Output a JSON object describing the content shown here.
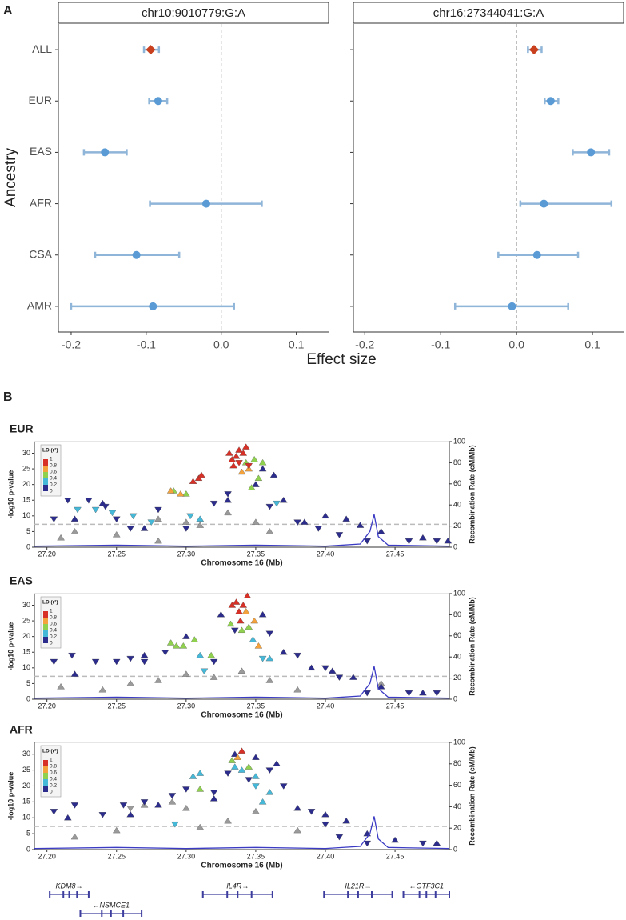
{
  "figure": {
    "panel_labels": [
      "A",
      "B"
    ],
    "a_ylabel": "Ancestry",
    "a_xlabel": "Effect size"
  },
  "chart_data": [
    {
      "type": "forest",
      "title": "chr10:9010779:G:A",
      "categories": [
        "ALL",
        "EUR",
        "EAS",
        "AFR",
        "CSA",
        "AMR"
      ],
      "values": [
        -0.094,
        -0.084,
        -0.155,
        -0.02,
        -0.113,
        -0.091
      ],
      "lower": [
        -0.103,
        -0.096,
        -0.183,
        -0.095,
        -0.168,
        -0.2
      ],
      "upper": [
        -0.083,
        -0.072,
        -0.126,
        0.054,
        -0.056,
        0.017
      ],
      "markers": [
        "diamond",
        "circle",
        "circle",
        "circle",
        "circle",
        "circle"
      ],
      "colors": [
        "#c8401d",
        "#5b9bd5",
        "#5b9bd5",
        "#5b9bd5",
        "#5b9bd5",
        "#5b9bd5"
      ],
      "errorbar_color": "#8fb5d8",
      "xlim": [
        -0.217,
        0.143
      ],
      "xticks": [
        -0.2,
        -0.1,
        {
          "value": 0,
          "label": "0.0"
        },
        0.1
      ],
      "refline": 0
    },
    {
      "type": "forest",
      "title": "chr16:27344041:G:A",
      "values": [
        0.023,
        0.045,
        0.098,
        0.036,
        0.027,
        -0.006
      ],
      "lower": [
        0.015,
        0.037,
        0.074,
        0.005,
        -0.024,
        -0.081
      ],
      "upper": [
        0.033,
        0.055,
        0.122,
        0.125,
        0.081,
        0.068
      ],
      "markers": [
        "diamond",
        "circle",
        "circle",
        "circle",
        "circle",
        "circle"
      ],
      "colors": [
        "#c8401d",
        "#5b9bd5",
        "#5b9bd5",
        "#5b9bd5",
        "#5b9bd5",
        "#5b9bd5"
      ],
      "errorbar_color": "#8fb5d8",
      "xlim": [
        -0.215,
        0.141
      ],
      "xticks": [
        -0.2,
        -0.1,
        {
          "value": 0,
          "label": "0.0"
        },
        0.1
      ],
      "refline": 0
    },
    {
      "type": "scatter",
      "title": "EUR",
      "xlabel": "Chromosome 16 (Mb)",
      "ylabel": "-log10 p-value",
      "y2label": "Recombination Rate (cM/Mb)",
      "xlim": [
        27.191,
        27.489
      ],
      "xticks": [
        {
          "value": 27.2,
          "label": "27.20"
        },
        27.25,
        {
          "value": 27.3,
          "label": "27.30"
        },
        27.35,
        {
          "value": 27.4,
          "label": "27.40"
        },
        27.45
      ],
      "ylim": [
        0,
        33.7
      ],
      "yticks": [
        0,
        5,
        10,
        15,
        20,
        25,
        30
      ],
      "y2lim": [
        0,
        100
      ],
      "y2ticks": [
        0,
        20,
        40,
        60,
        80,
        100
      ],
      "threshold": 7.3,
      "legend": {
        "title": "LD (r²)",
        "ticks": [
          1,
          0.8,
          0.6,
          0.4,
          0.2,
          0
        ],
        "colors": [
          "#d73027",
          "#f4a23c",
          "#8fd14f",
          "#46b8d8",
          "#2c2c8c"
        ]
      },
      "series": [
        {
          "color": "#9a9a9a",
          "marker": "triangle-up",
          "x": [
            27.21,
            27.25,
            27.28,
            27.3,
            27.31,
            27.33,
            27.35,
            27.36,
            27.28,
            27.22
          ],
          "y": [
            3,
            4,
            2,
            8,
            7,
            11,
            8,
            5,
            9,
            5
          ]
        },
        {
          "color": "#2c2c8c",
          "marker": "triangle-down",
          "x": [
            27.205,
            27.215,
            27.23,
            27.242,
            27.25,
            27.26,
            27.28,
            27.3,
            27.32,
            27.33,
            27.36,
            27.38,
            27.395,
            27.41,
            27.43,
            27.46,
            27.48
          ],
          "y": [
            9,
            15,
            15,
            13,
            9,
            6,
            12,
            6,
            14,
            17,
            13,
            8,
            6,
            4,
            2,
            2,
            2
          ]
        },
        {
          "color": "#2c2c8c",
          "marker": "triangle-up",
          "x": [
            27.22,
            27.24,
            27.27,
            27.33,
            27.35,
            27.363,
            27.355,
            27.37,
            27.385,
            27.4,
            27.415,
            27.425,
            27.44,
            27.47,
            27.488
          ],
          "y": [
            9,
            14,
            6,
            15,
            20,
            23,
            25,
            15,
            8,
            10,
            9,
            7,
            5,
            3,
            2
          ]
        },
        {
          "color": "#46b8d8",
          "marker": "triangle-down",
          "x": [
            27.222,
            27.235,
            27.247,
            27.262,
            27.275,
            27.303,
            27.365
          ],
          "y": [
            12,
            12,
            11,
            10,
            8,
            10,
            14
          ]
        },
        {
          "color": "#46b8d8",
          "marker": "triangle-up",
          "x": [
            27.31
          ],
          "y": [
            9
          ]
        },
        {
          "color": "#8fd14f",
          "marker": "triangle-up",
          "x": [
            27.291,
            27.3,
            27.343,
            27.349,
            27.352,
            27.355,
            27.347
          ],
          "y": [
            18,
            17,
            27,
            28,
            22,
            27,
            19
          ]
        },
        {
          "color": "#f4a23c",
          "marker": "triangle-up",
          "x": [
            27.289,
            27.296,
            27.34,
            27.345
          ],
          "y": [
            18,
            17,
            24,
            25
          ]
        },
        {
          "color": "#d73027",
          "marker": "triangle-up",
          "x": [
            27.331,
            27.333,
            27.336,
            27.338,
            27.341,
            27.343,
            27.334,
            27.305,
            27.309,
            27.311
          ],
          "y": [
            30,
            28,
            29,
            31,
            30,
            32,
            26,
            21,
            22,
            23
          ]
        },
        {
          "color": "#d73027",
          "marker": "triangle-down",
          "x": [
            27.338,
            27.345
          ],
          "y": [
            27,
            26
          ]
        }
      ],
      "recomb": {
        "axis": "y2",
        "color": "#3b3bc4",
        "x": [
          27.191,
          27.25,
          27.3,
          27.35,
          27.4,
          27.425,
          27.432,
          27.435,
          27.438,
          27.445,
          27.489
        ],
        "y": [
          1,
          2,
          1,
          2,
          1,
          3,
          15,
          31,
          10,
          2,
          1
        ]
      }
    },
    {
      "type": "scatter",
      "title": "EAS",
      "xlabel": "Chromosome 16 (Mb)",
      "ylabel": "-log10 p-value",
      "y2label": "Recombination Rate (cM/Mb)",
      "xlim": [
        27.191,
        27.489
      ],
      "xticks": [
        {
          "value": 27.2,
          "label": "27.20"
        },
        27.25,
        {
          "value": 27.3,
          "label": "27.30"
        },
        27.35,
        {
          "value": 27.4,
          "label": "27.40"
        },
        27.45
      ],
      "ylim": [
        0,
        33.7
      ],
      "yticks": [
        0,
        5,
        10,
        15,
        20,
        25,
        30
      ],
      "y2lim": [
        0,
        100
      ],
      "y2ticks": [
        0,
        20,
        40,
        60,
        80,
        100
      ],
      "threshold": 7.3,
      "legend": {
        "title": "LD (r²)",
        "ticks": [
          1,
          0.8,
          0.6,
          0.4,
          0.2,
          0
        ],
        "colors": [
          "#d73027",
          "#f4a23c",
          "#8fd14f",
          "#46b8d8",
          "#2c2c8c"
        ]
      },
      "series": [
        {
          "color": "#9a9a9a",
          "marker": "triangle-up",
          "x": [
            27.21,
            27.24,
            27.26,
            27.28,
            27.3,
            27.32,
            27.34,
            27.36,
            27.38,
            27.44
          ],
          "y": [
            4,
            3,
            5,
            6,
            8,
            7,
            9,
            6,
            3,
            5
          ]
        },
        {
          "color": "#2c2c8c",
          "marker": "triangle-down",
          "x": [
            27.205,
            27.218,
            27.235,
            27.25,
            27.26,
            27.27,
            27.285,
            27.32,
            27.335,
            27.36,
            27.38,
            27.4,
            27.41,
            27.43,
            27.46,
            27.48
          ],
          "y": [
            12,
            14,
            12,
            12,
            13,
            12,
            15,
            12,
            22,
            21,
            14,
            10,
            7,
            2,
            2,
            2
          ]
        },
        {
          "color": "#2c2c8c",
          "marker": "triangle-up",
          "x": [
            27.22,
            27.27,
            27.3,
            27.325,
            27.355,
            27.37,
            27.39,
            27.405,
            27.42,
            27.44,
            27.47
          ],
          "y": [
            8,
            14,
            20,
            27,
            27,
            15,
            10,
            9,
            7,
            4,
            2
          ]
        },
        {
          "color": "#46b8d8",
          "marker": "triangle-up",
          "x": [
            27.31,
            27.348,
            27.36
          ],
          "y": [
            14,
            19,
            13
          ]
        },
        {
          "color": "#46b8d8",
          "marker": "triangle-down",
          "x": [
            27.313,
            27.355
          ],
          "y": [
            9,
            13
          ]
        },
        {
          "color": "#8fd14f",
          "marker": "triangle-up",
          "x": [
            27.289,
            27.293,
            27.298,
            27.306,
            27.318,
            27.332,
            27.34,
            27.345
          ],
          "y": [
            18,
            17,
            17,
            19,
            14,
            24,
            22,
            23
          ]
        },
        {
          "color": "#f4a23c",
          "marker": "triangle-up",
          "x": [
            27.343,
            27.349,
            27.352
          ],
          "y": [
            28,
            25,
            17
          ]
        },
        {
          "color": "#d73027",
          "marker": "triangle-up",
          "x": [
            27.333,
            27.336,
            27.338,
            27.341,
            27.344,
            27.339
          ],
          "y": [
            30,
            31,
            28,
            30,
            33,
            25
          ]
        }
      ],
      "recomb": {
        "axis": "y2",
        "color": "#3b3bc4",
        "x": [
          27.191,
          27.25,
          27.3,
          27.35,
          27.4,
          27.425,
          27.432,
          27.435,
          27.438,
          27.445,
          27.489
        ],
        "y": [
          1,
          2,
          1,
          2,
          1,
          3,
          15,
          31,
          10,
          2,
          1
        ]
      }
    },
    {
      "type": "scatter",
      "title": "AFR",
      "xlabel": "Chromosome 16 (Mb)",
      "ylabel": "-log10 p-value",
      "y2label": "Recombination Rate (cM/Mb)",
      "xlim": [
        27.191,
        27.489
      ],
      "xticks": [
        {
          "value": 27.2,
          "label": "27.20"
        },
        27.25,
        {
          "value": 27.3,
          "label": "27.30"
        },
        27.35,
        {
          "value": 27.4,
          "label": "27.40"
        },
        27.45
      ],
      "ylim": [
        0,
        33.7
      ],
      "yticks": [
        0,
        5,
        10,
        15,
        20,
        25,
        30
      ],
      "y2lim": [
        0,
        100
      ],
      "y2ticks": [
        0,
        20,
        40,
        60,
        80,
        100
      ],
      "threshold": 7.3,
      "legend": {
        "title": "LD (r²)",
        "ticks": [
          1,
          0.8,
          0.6,
          0.4,
          0.2,
          0
        ],
        "colors": [
          "#d73027",
          "#f4a23c",
          "#8fd14f",
          "#46b8d8",
          "#2c2c8c"
        ]
      },
      "series": [
        {
          "color": "#9a9a9a",
          "marker": "triangle-up",
          "x": [
            27.22,
            27.25,
            27.27,
            27.3,
            27.29,
            27.31,
            27.33,
            27.35,
            27.38
          ],
          "y": [
            4,
            6,
            14,
            13,
            15,
            7,
            9,
            12,
            6
          ]
        },
        {
          "color": "#9a9a9a",
          "marker": "triangle-down",
          "x": [
            27.26
          ],
          "y": [
            13
          ]
        },
        {
          "color": "#2c2c8c",
          "marker": "triangle-down",
          "x": [
            27.205,
            27.22,
            27.24,
            27.255,
            27.27,
            27.29,
            27.3,
            27.32,
            27.33,
            27.345,
            27.36,
            27.37,
            27.39,
            27.4,
            27.41,
            27.43,
            27.47
          ],
          "y": [
            12,
            14,
            11,
            14,
            15,
            17,
            19,
            18,
            24,
            22,
            25,
            20,
            12,
            8,
            4,
            2,
            2
          ]
        },
        {
          "color": "#2c2c8c",
          "marker": "triangle-up",
          "x": [
            27.215,
            27.26,
            27.28,
            27.32,
            27.335,
            27.35,
            27.365,
            27.38,
            27.4,
            27.415,
            27.43,
            27.45,
            27.48
          ],
          "y": [
            10,
            11,
            14,
            16,
            30,
            29,
            27,
            13,
            11,
            9,
            5,
            3,
            2
          ]
        },
        {
          "color": "#46b8d8",
          "marker": "triangle-up",
          "x": [
            27.305,
            27.31,
            27.335,
            27.34,
            27.35,
            27.355,
            27.36
          ],
          "y": [
            23,
            24,
            26,
            25,
            23,
            15,
            18
          ]
        },
        {
          "color": "#46b8d8",
          "marker": "triangle-down",
          "x": [
            27.292,
            27.35
          ],
          "y": [
            8,
            20
          ]
        },
        {
          "color": "#8fd14f",
          "marker": "triangle-up",
          "x": [
            27.333,
            27.345,
            27.31
          ],
          "y": [
            28,
            26,
            19
          ]
        },
        {
          "color": "#f4a23c",
          "marker": "triangle-up",
          "x": [
            27.337
          ],
          "y": [
            29
          ]
        },
        {
          "color": "#d73027",
          "marker": "triangle-up",
          "x": [
            27.34
          ],
          "y": [
            31
          ]
        }
      ],
      "recomb": {
        "axis": "y2",
        "color": "#3b3bc4",
        "x": [
          27.191,
          27.25,
          27.3,
          27.35,
          27.4,
          27.425,
          27.432,
          27.435,
          27.438,
          27.445,
          27.489
        ],
        "y": [
          1,
          2,
          1,
          2,
          1,
          3,
          15,
          31,
          10,
          2,
          1
        ]
      }
    }
  ],
  "genes": {
    "color": "#3d3d9e",
    "items": [
      {
        "label": "KDM8→",
        "start": 27.202,
        "end": 27.23
      },
      {
        "label": "←NSMCE1",
        "start": 27.224,
        "end": 27.268
      },
      {
        "label": "IL4R→",
        "start": 27.312,
        "end": 27.362
      },
      {
        "label": "IL21R→",
        "start": 27.399,
        "end": 27.448
      },
      {
        "label": "←GTF3C1",
        "start": 27.456,
        "end": 27.489
      }
    ]
  }
}
